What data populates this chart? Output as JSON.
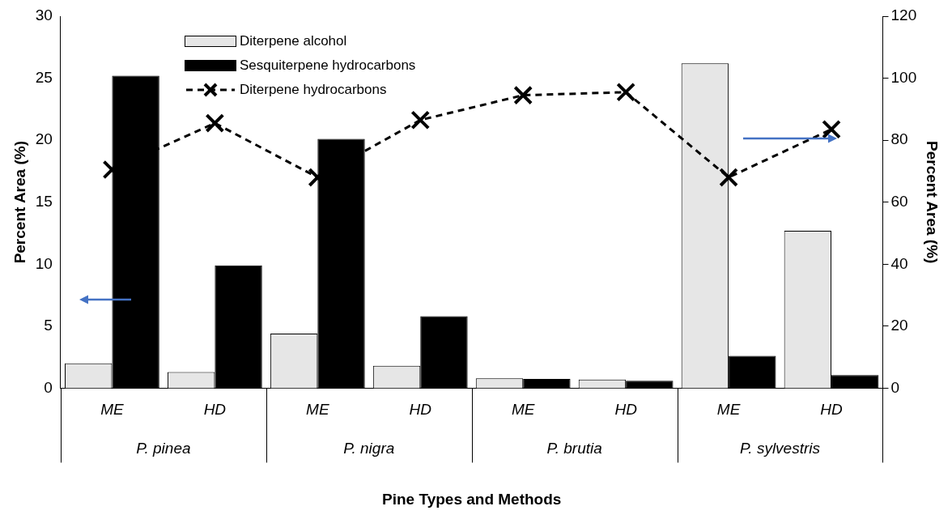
{
  "chart_data": {
    "type": "bar",
    "xlabel": "Pine Types and Methods",
    "ylabel": "Percent Area (%)",
    "y2label": "Percent Area (%)",
    "categories": [
      "ME",
      "HD",
      "ME",
      "HD",
      "ME",
      "HD",
      "ME",
      "HD"
    ],
    "annotations": [
      "P. pinea",
      "P. nigra",
      "P. brutia",
      "P. sylvestris"
    ],
    "series": [
      {
        "name": "Diterpene alcohol",
        "color": "#e6e6e6",
        "values": [
          2.0,
          1.3,
          4.4,
          1.8,
          0.8,
          0.7,
          26.2,
          12.7
        ]
      },
      {
        "name": "Sesquiterpene hydrocarbons",
        "color": "#000000",
        "values": [
          25.2,
          9.9,
          20.1,
          5.8,
          0.75,
          0.6,
          2.6,
          1.05
        ]
      },
      {
        "name": "Diterpene hydrocarbons",
        "type": "line",
        "axis": "y2",
        "color": "#000000",
        "values": [
          70.5,
          85.5,
          68,
          86.5,
          94.5,
          95.5,
          68,
          83.5
        ]
      }
    ],
    "ylim": [
      0,
      30
    ],
    "yticks": [
      0,
      5,
      10,
      15,
      20,
      25,
      30
    ],
    "y2lim": [
      0,
      120
    ],
    "y2ticks": [
      0,
      20,
      40,
      60,
      80,
      100,
      120
    ],
    "grid": false,
    "legend": "top left",
    "marker": "cross",
    "line_style": "dashed"
  }
}
